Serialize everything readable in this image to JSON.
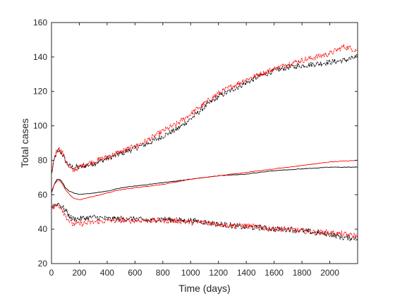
{
  "chart_data": {
    "type": "line",
    "title": "",
    "xlabel": "Time (days)",
    "ylabel": "Total cases",
    "xlim": [
      0,
      2200
    ],
    "ylim": [
      20,
      160
    ],
    "xticks": [
      0,
      200,
      400,
      600,
      800,
      1000,
      1200,
      1400,
      1600,
      1800,
      2000
    ],
    "yticks": [
      20,
      40,
      60,
      80,
      100,
      120,
      140,
      160
    ],
    "grid": false,
    "legend": "none",
    "series": [
      {
        "color": "#000000",
        "style": "dashed",
        "x": [
          0,
          25,
          50,
          75,
          100,
          125,
          150,
          175,
          200,
          250,
          300,
          400,
          500,
          600,
          700,
          800,
          900,
          1000,
          1100,
          1200,
          1300,
          1400,
          1500,
          1600,
          1700,
          1800,
          1900,
          2000,
          2100,
          2200
        ],
        "y": [
          72,
          82,
          86,
          84,
          80,
          77,
          76,
          76,
          76,
          77,
          78,
          81,
          84,
          87,
          90,
          94,
          98,
          104,
          111,
          117,
          121,
          125,
          129,
          132,
          134,
          135,
          136,
          137,
          138,
          140
        ]
      },
      {
        "color": "#ff0000",
        "style": "dashed",
        "x": [
          0,
          25,
          50,
          75,
          100,
          125,
          150,
          175,
          200,
          250,
          300,
          400,
          500,
          600,
          700,
          800,
          900,
          1000,
          1100,
          1200,
          1300,
          1400,
          1500,
          1600,
          1700,
          1800,
          1900,
          2000,
          2100,
          2200
        ],
        "y": [
          73,
          83,
          87,
          85,
          80,
          76,
          74,
          75,
          76,
          78,
          79,
          82,
          85,
          88,
          92,
          97,
          101,
          107,
          113,
          119,
          123,
          127,
          130,
          133,
          136,
          138,
          140,
          142,
          146,
          144
        ]
      },
      {
        "color": "#000000",
        "style": "solid",
        "x": [
          0,
          20,
          40,
          60,
          80,
          100,
          130,
          160,
          200,
          300,
          400,
          500,
          600,
          800,
          1000,
          1200,
          1400,
          1600,
          1800,
          2000,
          2200
        ],
        "y": [
          61,
          66,
          69,
          69,
          67,
          64,
          62,
          61,
          60,
          61,
          62,
          64,
          65,
          67,
          69,
          71,
          72,
          74,
          75,
          76,
          76
        ]
      },
      {
        "color": "#ff0000",
        "style": "solid",
        "x": [
          0,
          20,
          40,
          60,
          80,
          100,
          130,
          160,
          200,
          300,
          400,
          500,
          600,
          800,
          1000,
          1200,
          1400,
          1600,
          1800,
          2000,
          2200
        ],
        "y": [
          62,
          66,
          68,
          68,
          66,
          63,
          60,
          58,
          57,
          59,
          61,
          63,
          64,
          66,
          69,
          71,
          73,
          75,
          77,
          79,
          80
        ]
      },
      {
        "color": "#000000",
        "style": "dashed",
        "x": [
          0,
          25,
          50,
          75,
          100,
          125,
          150,
          200,
          300,
          400,
          500,
          600,
          700,
          800,
          900,
          1000,
          1100,
          1200,
          1300,
          1400,
          1500,
          1600,
          1700,
          1800,
          1900,
          2000,
          2100,
          2200
        ],
        "y": [
          53,
          54,
          55,
          53,
          51,
          48,
          46,
          46,
          47,
          46,
          46,
          46,
          45,
          46,
          45,
          45,
          44,
          43,
          42,
          41,
          41,
          40,
          40,
          39,
          38,
          37,
          35,
          35
        ]
      },
      {
        "color": "#ff0000",
        "style": "dashed",
        "x": [
          0,
          25,
          50,
          75,
          100,
          125,
          150,
          200,
          300,
          400,
          500,
          600,
          700,
          800,
          900,
          1000,
          1100,
          1200,
          1300,
          1400,
          1500,
          1600,
          1700,
          1800,
          1900,
          2000,
          2100,
          2200
        ],
        "y": [
          52,
          53,
          54,
          52,
          48,
          45,
          43,
          43,
          44,
          45,
          45,
          45,
          45,
          45,
          45,
          44,
          44,
          43,
          42,
          42,
          41,
          40,
          40,
          39,
          38,
          38,
          37,
          36
        ]
      }
    ]
  }
}
